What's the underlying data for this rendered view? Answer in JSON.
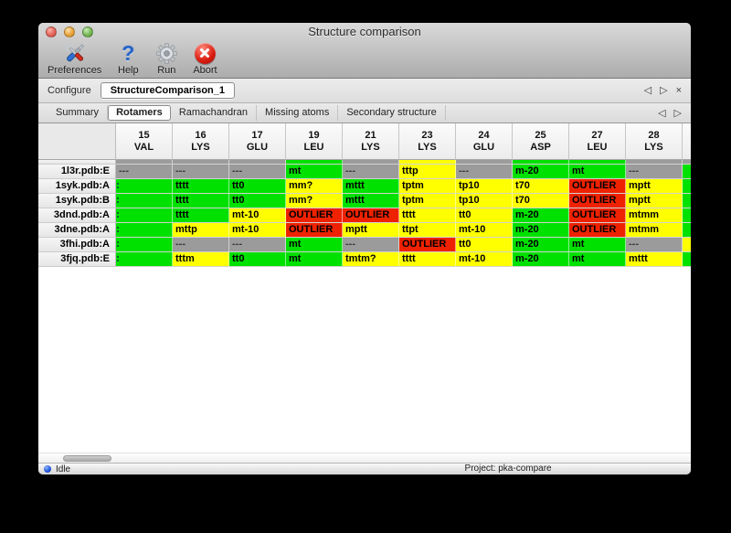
{
  "window": {
    "title": "Structure comparison"
  },
  "toolbar": {
    "buttons": [
      {
        "id": "preferences",
        "label": "Preferences",
        "icon": "tools-icon"
      },
      {
        "id": "help",
        "label": "Help",
        "icon": "question-mark-icon"
      },
      {
        "id": "run",
        "label": "Run",
        "icon": "gear-icon"
      },
      {
        "id": "abort",
        "label": "Abort",
        "icon": "abort-x-icon"
      }
    ]
  },
  "configure": {
    "label": "Configure",
    "session": "StructureComparison_1",
    "nav": {
      "prev": "◁",
      "next": "▷",
      "close": "×"
    }
  },
  "tabs": {
    "items": [
      "Summary",
      "Rotamers",
      "Ramachandran",
      "Missing atoms",
      "Secondary structure"
    ],
    "active": "Rotamers",
    "nav": {
      "prev": "◁",
      "next": "▷"
    }
  },
  "rotamer_table": {
    "columns": [
      {
        "residue_number": "15",
        "residue_name": "VAL"
      },
      {
        "residue_number": "16",
        "residue_name": "LYS"
      },
      {
        "residue_number": "17",
        "residue_name": "GLU"
      },
      {
        "residue_number": "19",
        "residue_name": "LEU"
      },
      {
        "residue_number": "21",
        "residue_name": "LYS"
      },
      {
        "residue_number": "23",
        "residue_name": "LYS"
      },
      {
        "residue_number": "24",
        "residue_name": "GLU"
      },
      {
        "residue_number": "25",
        "residue_name": "ASP"
      },
      {
        "residue_number": "27",
        "residue_name": "LEU"
      },
      {
        "residue_number": "28",
        "residue_name": "LYS"
      }
    ],
    "partial_row": {
      "colors": [
        "gray",
        "gray",
        "gray",
        "green",
        "gray",
        "yellow",
        "gray",
        "green",
        "green",
        "gray"
      ],
      "sliver": "gray"
    },
    "rows": [
      {
        "label": "1l3r.pdb:E",
        "sliver": "green",
        "cells": [
          {
            "text": "---",
            "color": "gray"
          },
          {
            "text": "---",
            "color": "gray"
          },
          {
            "text": "---",
            "color": "gray"
          },
          {
            "text": "mt",
            "color": "green"
          },
          {
            "text": "---",
            "color": "gray"
          },
          {
            "text": "tttp",
            "color": "yellow"
          },
          {
            "text": "---",
            "color": "gray"
          },
          {
            "text": "m-20",
            "color": "green"
          },
          {
            "text": "mt",
            "color": "green"
          },
          {
            "text": "---",
            "color": "gray"
          }
        ]
      },
      {
        "label": "1syk.pdb:A",
        "sliver": "green",
        "cells": [
          {
            "text": "",
            "color": "green",
            "clipped": true
          },
          {
            "text": "tttt",
            "color": "green"
          },
          {
            "text": "tt0",
            "color": "green"
          },
          {
            "text": "mm?",
            "color": "yellow"
          },
          {
            "text": "mttt",
            "color": "green"
          },
          {
            "text": "tptm",
            "color": "yellow"
          },
          {
            "text": "tp10",
            "color": "yellow"
          },
          {
            "text": "t70",
            "color": "yellow"
          },
          {
            "text": "OUTLIER",
            "color": "red"
          },
          {
            "text": "mptt",
            "color": "yellow"
          }
        ]
      },
      {
        "label": "1syk.pdb:B",
        "sliver": "green",
        "cells": [
          {
            "text": "",
            "color": "green",
            "clipped": true
          },
          {
            "text": "tttt",
            "color": "green"
          },
          {
            "text": "tt0",
            "color": "green"
          },
          {
            "text": "mm?",
            "color": "yellow"
          },
          {
            "text": "mttt",
            "color": "green"
          },
          {
            "text": "tptm",
            "color": "yellow"
          },
          {
            "text": "tp10",
            "color": "yellow"
          },
          {
            "text": "t70",
            "color": "yellow"
          },
          {
            "text": "OUTLIER",
            "color": "red"
          },
          {
            "text": "mptt",
            "color": "yellow"
          }
        ]
      },
      {
        "label": "3dnd.pdb:A",
        "sliver": "green",
        "cells": [
          {
            "text": "",
            "color": "green",
            "clipped": true
          },
          {
            "text": "tttt",
            "color": "green"
          },
          {
            "text": "mt-10",
            "color": "yellow"
          },
          {
            "text": "OUTLIER",
            "color": "red"
          },
          {
            "text": "OUTLIER",
            "color": "red"
          },
          {
            "text": "tttt",
            "color": "yellow"
          },
          {
            "text": "tt0",
            "color": "yellow"
          },
          {
            "text": "m-20",
            "color": "green"
          },
          {
            "text": "OUTLIER",
            "color": "red"
          },
          {
            "text": "mtmm",
            "color": "yellow"
          }
        ]
      },
      {
        "label": "3dne.pdb:A",
        "sliver": "green",
        "cells": [
          {
            "text": "",
            "color": "green",
            "clipped": true
          },
          {
            "text": "mttp",
            "color": "yellow"
          },
          {
            "text": "mt-10",
            "color": "yellow"
          },
          {
            "text": "OUTLIER",
            "color": "red"
          },
          {
            "text": "mptt",
            "color": "yellow"
          },
          {
            "text": "ttpt",
            "color": "yellow"
          },
          {
            "text": "mt-10",
            "color": "yellow"
          },
          {
            "text": "m-20",
            "color": "green"
          },
          {
            "text": "OUTLIER",
            "color": "red"
          },
          {
            "text": "mtmm",
            "color": "yellow"
          }
        ]
      },
      {
        "label": "3fhi.pdb:A",
        "sliver": "yellow",
        "cells": [
          {
            "text": "",
            "color": "green",
            "clipped": true
          },
          {
            "text": "---",
            "color": "gray"
          },
          {
            "text": "---",
            "color": "gray"
          },
          {
            "text": "mt",
            "color": "green"
          },
          {
            "text": "---",
            "color": "gray"
          },
          {
            "text": "OUTLIER",
            "color": "red"
          },
          {
            "text": "tt0",
            "color": "yellow"
          },
          {
            "text": "m-20",
            "color": "green"
          },
          {
            "text": "mt",
            "color": "green"
          },
          {
            "text": "---",
            "color": "gray"
          }
        ]
      },
      {
        "label": "3fjq.pdb:E",
        "sliver": "green",
        "cells": [
          {
            "text": "",
            "color": "green",
            "clipped": true
          },
          {
            "text": "tttm",
            "color": "yellow"
          },
          {
            "text": "tt0",
            "color": "green"
          },
          {
            "text": "mt",
            "color": "green"
          },
          {
            "text": "tmtm?",
            "color": "yellow"
          },
          {
            "text": "tttt",
            "color": "yellow"
          },
          {
            "text": "mt-10",
            "color": "yellow"
          },
          {
            "text": "m-20",
            "color": "green"
          },
          {
            "text": "mt",
            "color": "green"
          },
          {
            "text": "mttt",
            "color": "yellow"
          }
        ]
      }
    ]
  },
  "status": {
    "state": "Idle",
    "project": "Project: pka-compare"
  },
  "colors": {
    "green": "#00e100",
    "yellow": "#ffff00",
    "red": "#ee2200",
    "gray": "#9b9b9b"
  }
}
